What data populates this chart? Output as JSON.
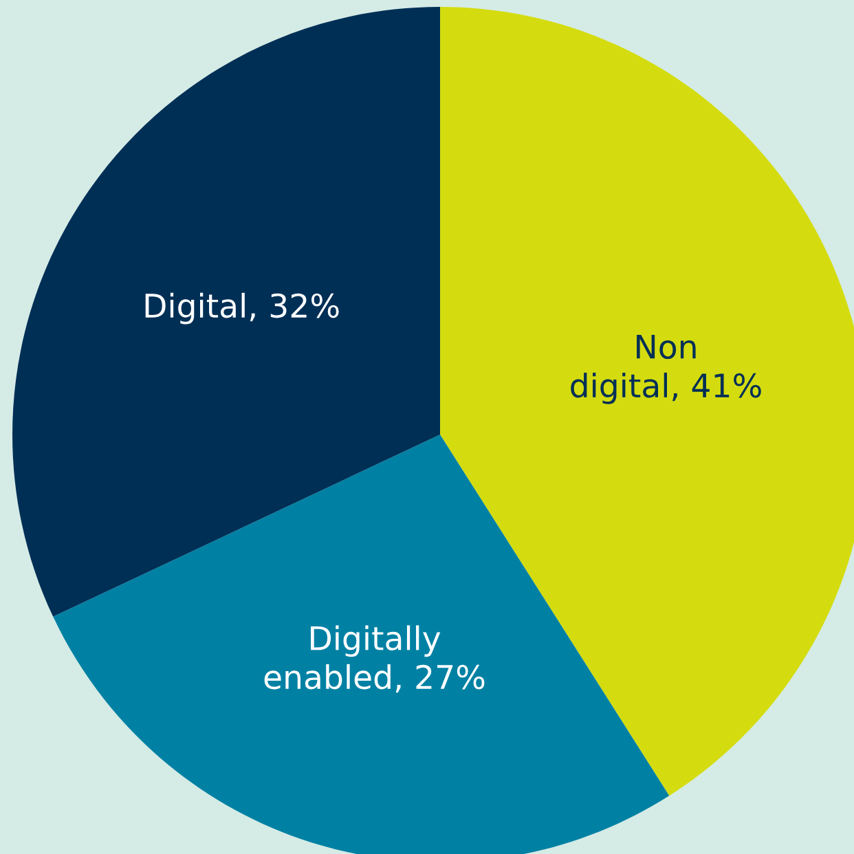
{
  "chart_data": {
    "type": "pie",
    "categories": [
      "Non digital",
      "Digitally enabled",
      "Digital"
    ],
    "values": [
      41,
      27,
      32
    ],
    "colors": [
      "#d4dc0f",
      "#0081a4",
      "#002f56"
    ],
    "value_labels": [
      "41%",
      "27%",
      "32%"
    ],
    "legend": false
  }
}
